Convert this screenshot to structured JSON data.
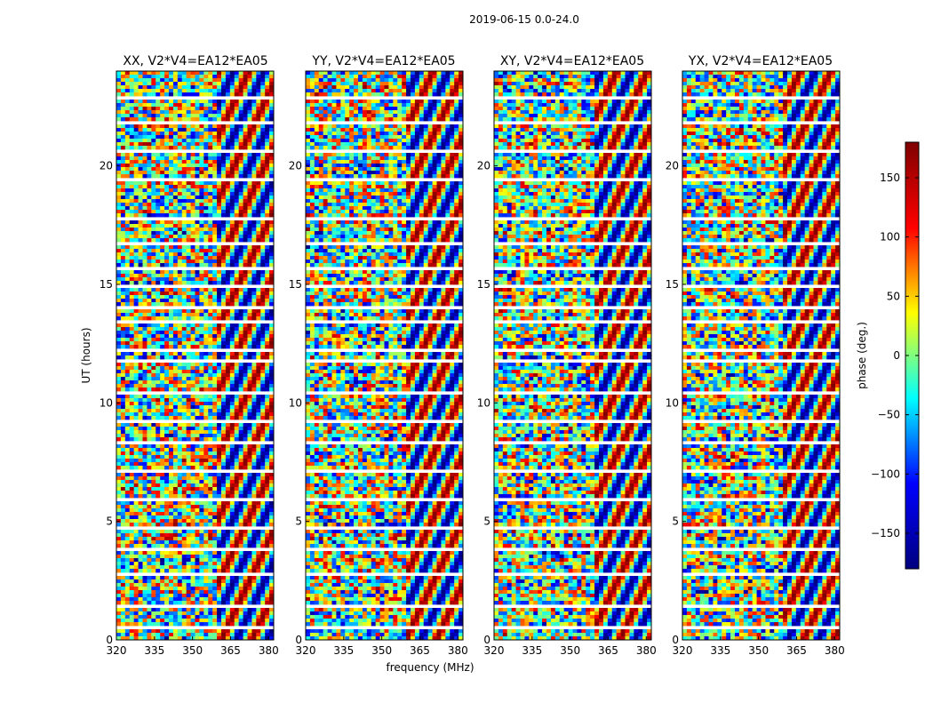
{
  "figure": {
    "suptitle": "2019-06-15 0.0-24.0"
  },
  "colorbar": {
    "label": "phase (deg.)",
    "ticks": [
      150,
      100,
      50,
      0,
      -50,
      -100,
      -150
    ],
    "tick_labels": [
      "150",
      "100",
      "50",
      "0",
      "−50",
      "−100",
      "−150"
    ],
    "vmin": -180,
    "vmax": 180,
    "colormap": "jet",
    "colormap_stops": [
      "#00007f",
      "#0000ff",
      "#00ffff",
      "#ffff00",
      "#ff0000",
      "#7f0000"
    ]
  },
  "chart_data": [
    {
      "type": "heatmap",
      "title": "XX, V2*V4=EA12*EA05",
      "xlabel": "",
      "ylabel": "UT (hours)",
      "xlim": [
        320,
        382
      ],
      "ylim": [
        0,
        24
      ],
      "xticks": [
        320,
        335,
        350,
        365,
        380
      ],
      "yticks": [
        0,
        5,
        10,
        15,
        20
      ],
      "value_range": [
        -180,
        180
      ]
    },
    {
      "type": "heatmap",
      "title": "YY, V2*V4=EA12*EA05",
      "xlabel": "frequency (MHz)",
      "ylabel": "",
      "xlim": [
        320,
        382
      ],
      "ylim": [
        0,
        24
      ],
      "xticks": [
        320,
        335,
        350,
        365,
        380
      ],
      "yticks": [
        0,
        5,
        10,
        15,
        20
      ],
      "value_range": [
        -180,
        180
      ]
    },
    {
      "type": "heatmap",
      "title": "XY, V2*V4=EA12*EA05",
      "xlabel": "",
      "ylabel": "",
      "xlim": [
        320,
        382
      ],
      "ylim": [
        0,
        24
      ],
      "xticks": [
        320,
        335,
        350,
        365,
        380
      ],
      "yticks": [
        0,
        5,
        10,
        15,
        20
      ],
      "value_range": [
        -180,
        180
      ]
    },
    {
      "type": "heatmap",
      "title": "YX, V2*V4=EA12*EA05",
      "xlabel": "",
      "ylabel": "",
      "xlim": [
        320,
        382
      ],
      "ylim": [
        0,
        24
      ],
      "xticks": [
        320,
        335,
        350,
        365,
        380
      ],
      "yticks": [
        0,
        5,
        10,
        15,
        20
      ],
      "value_range": [
        -180,
        180
      ]
    }
  ]
}
